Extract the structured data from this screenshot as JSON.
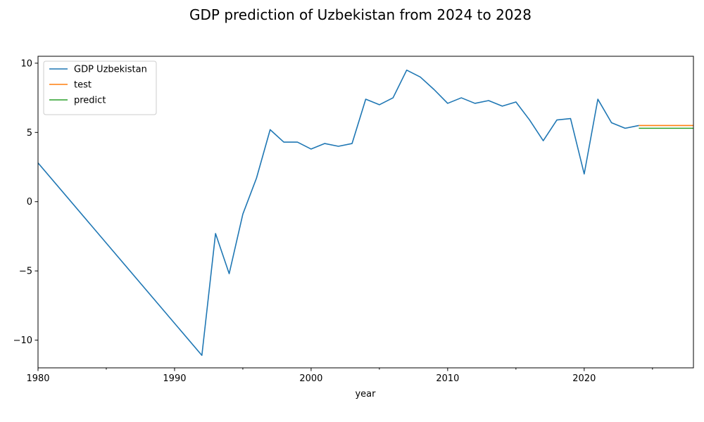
{
  "chart_data": {
    "type": "line",
    "title": "GDP prediction of Uzbekistan from 2024 to 2028",
    "xlabel": "year",
    "ylabel": "",
    "xlim": [
      1980,
      2028
    ],
    "ylim": [
      -12,
      10.5
    ],
    "xticks": [
      1980,
      1990,
      2000,
      2010,
      2020
    ],
    "xtick_labels": [
      "1980",
      "1990",
      "2000",
      "2010",
      "2020"
    ],
    "yticks": [
      -10,
      -5,
      0,
      5,
      10
    ],
    "ytick_labels": [
      "−10",
      "−5",
      "0",
      "5",
      "10"
    ],
    "grid": false,
    "legend_position": "top-left",
    "series": [
      {
        "name": "GDP Uzbekistan",
        "color": "#1f77b4",
        "x": [
          1980,
          1992,
          1993,
          1994,
          1995,
          1996,
          1997,
          1998,
          1999,
          2000,
          2001,
          2002,
          2003,
          2004,
          2005,
          2006,
          2007,
          2008,
          2009,
          2010,
          2011,
          2012,
          2013,
          2014,
          2015,
          2016,
          2017,
          2018,
          2019,
          2020,
          2021,
          2022,
          2023,
          2024
        ],
        "y": [
          2.8,
          -11.1,
          -2.3,
          -5.2,
          -0.9,
          1.7,
          5.2,
          4.3,
          4.3,
          3.8,
          4.2,
          4.0,
          4.2,
          7.4,
          7.0,
          7.5,
          9.5,
          9.0,
          8.1,
          7.1,
          7.5,
          7.1,
          7.3,
          6.9,
          7.2,
          5.9,
          4.4,
          5.9,
          6.0,
          2.0,
          7.4,
          5.7,
          5.3,
          5.5
        ]
      },
      {
        "name": "test",
        "color": "#ff7f0e",
        "x": [
          2024,
          2028
        ],
        "y": [
          5.5,
          5.5
        ]
      },
      {
        "name": "predict",
        "color": "#2ca02c",
        "x": [
          2024,
          2028
        ],
        "y": [
          5.3,
          5.3
        ]
      }
    ]
  }
}
